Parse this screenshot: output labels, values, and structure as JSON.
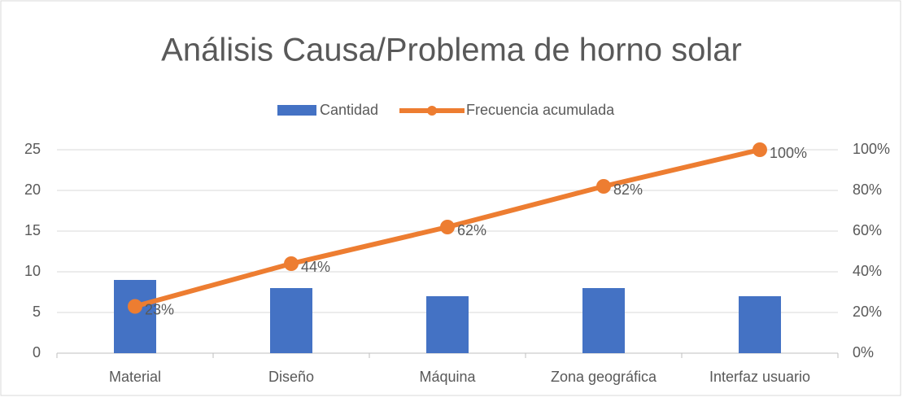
{
  "chart_data": {
    "type": "bar",
    "title": "Análisis Causa/Problema de horno solar",
    "categories": [
      "Material",
      "Diseño",
      "Máquina",
      "Zona geográfica",
      "Interfaz usuario"
    ],
    "series": [
      {
        "name": "Cantidad",
        "type": "bar",
        "color": "#4472c4",
        "values": [
          9,
          8,
          7,
          8,
          7
        ]
      },
      {
        "name": "Frecuencia acumulada",
        "type": "line",
        "axis": "y2",
        "color": "#ed7d31",
        "values": [
          23,
          44,
          62,
          82,
          100
        ],
        "value_labels": [
          "23%",
          "44%",
          "62%",
          "82%",
          "100%"
        ]
      }
    ],
    "ylim": [
      0,
      25
    ],
    "yticks": [
      0,
      5,
      10,
      15,
      20,
      25
    ],
    "y2lim": [
      0,
      100
    ],
    "y2ticks": [
      {
        "value": 0,
        "label": "0%"
      },
      {
        "value": 20,
        "label": "20%"
      },
      {
        "value": 40,
        "label": "40%"
      },
      {
        "value": 60,
        "label": "60%"
      },
      {
        "value": 80,
        "label": "80%"
      },
      {
        "value": 100,
        "label": "100%"
      }
    ],
    "grid": true,
    "legend": "top"
  }
}
